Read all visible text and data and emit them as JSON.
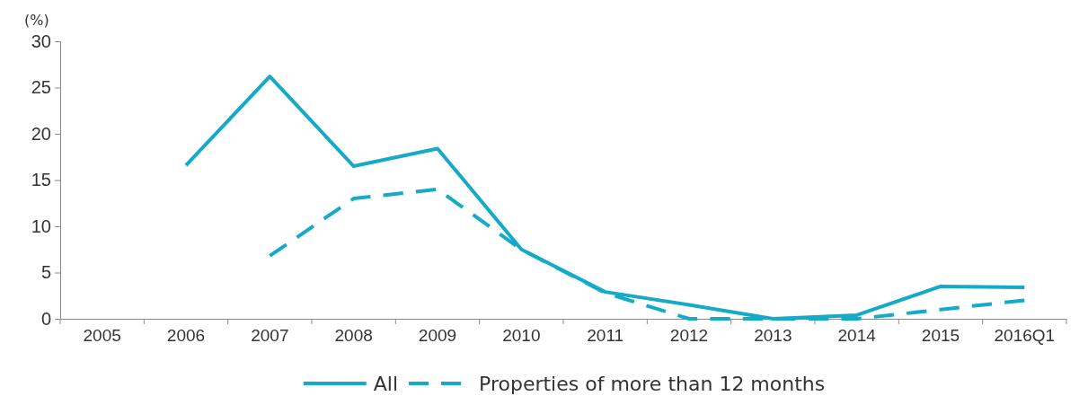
{
  "chart_data": {
    "type": "line",
    "ylabel": "(%)",
    "categories": [
      "2005",
      "2006",
      "2007",
      "2008",
      "2009",
      "2010",
      "2011",
      "2012",
      "2013",
      "2014",
      "2015",
      "2016Q1"
    ],
    "series": [
      {
        "name": "All",
        "color": "#14aac8",
        "line_style": "solid",
        "values": [
          null,
          16.6,
          26.2,
          16.5,
          18.4,
          7.5,
          2.9,
          1.5,
          0,
          0.4,
          3.5,
          3.4
        ]
      },
      {
        "name": "Properties of more than 12 months",
        "color": "#14aac8",
        "line_style": "dashed",
        "values": [
          null,
          null,
          6.8,
          13,
          14,
          7.5,
          2.8,
          0,
          0,
          0,
          1,
          2
        ]
      }
    ],
    "ylim": [
      0,
      30
    ],
    "yticks": [
      0,
      5,
      10,
      15,
      20,
      25,
      30
    ],
    "grid": false,
    "legend": "bottom",
    "marker": "none"
  }
}
